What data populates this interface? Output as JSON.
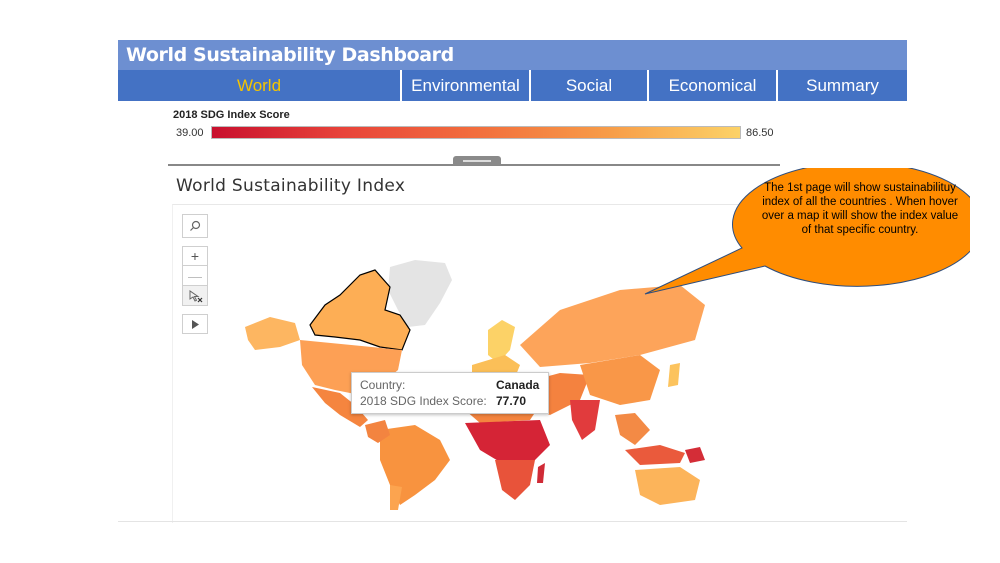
{
  "dashboard": {
    "title": "World Sustainability Dashboard"
  },
  "tabs": [
    {
      "label": "World",
      "active": true
    },
    {
      "label": "Environmental",
      "active": false
    },
    {
      "label": "Social",
      "active": false
    },
    {
      "label": "Economical",
      "active": false
    },
    {
      "label": "Summary",
      "active": false
    }
  ],
  "legend": {
    "title": "2018 SDG Index Score",
    "min": "39.00",
    "max": "86.50",
    "color_low": "#c8102e",
    "color_high": "#fcd267"
  },
  "map": {
    "title": "World Sustainability Index",
    "controls": [
      "search-icon",
      "zoom-in-icon",
      "zoom-out-icon",
      "pan-select-icon",
      "play-icon"
    ]
  },
  "tooltip": {
    "country_label": "Country:",
    "country_value": "Canada",
    "score_label": "2018 SDG Index Score:",
    "score_value": "77.70"
  },
  "callout": {
    "text": "The 1st page will show sustainabilituy index of all the countries . When hover over a map it will show the index value of that specific country.",
    "fill": "#ff8c00"
  },
  "colors": {
    "title_bar": "#6d8fd1",
    "tab_bg": "#4472c4",
    "active_tab_text": "#f5c400"
  }
}
